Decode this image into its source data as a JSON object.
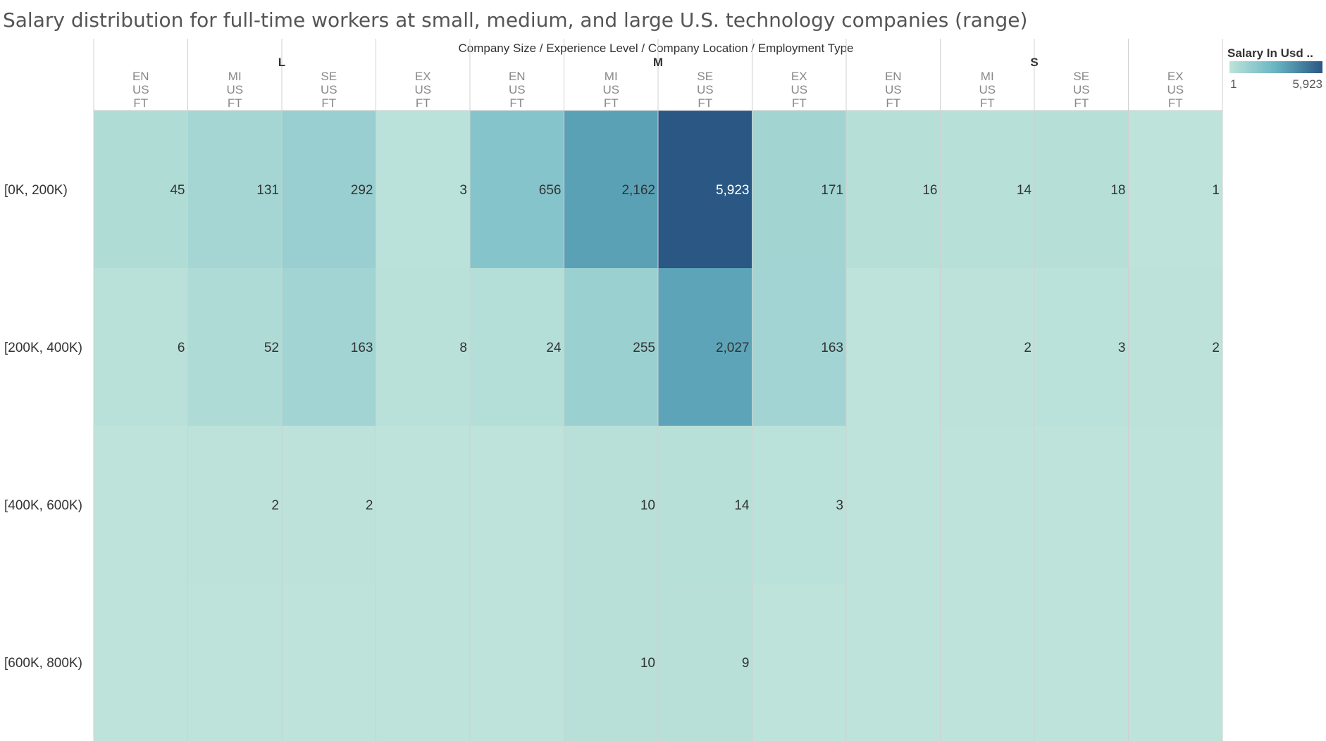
{
  "chart_data": {
    "type": "heatmap",
    "title": "Salary distribution for full-time workers at small, medium, and large U.S. technology companies (range)",
    "column_header": "Company Size  /  Experience Level  /  Company Location  /  Employment Type",
    "groups": [
      {
        "name": "L",
        "columns": [
          {
            "level": "EN",
            "location": "US",
            "type": "FT"
          },
          {
            "level": "MI",
            "location": "US",
            "type": "FT"
          },
          {
            "level": "SE",
            "location": "US",
            "type": "FT"
          },
          {
            "level": "EX",
            "location": "US",
            "type": "FT"
          }
        ]
      },
      {
        "name": "M",
        "columns": [
          {
            "level": "EN",
            "location": "US",
            "type": "FT"
          },
          {
            "level": "MI",
            "location": "US",
            "type": "FT"
          },
          {
            "level": "SE",
            "location": "US",
            "type": "FT"
          },
          {
            "level": "EX",
            "location": "US",
            "type": "FT"
          }
        ]
      },
      {
        "name": "S",
        "columns": [
          {
            "level": "EN",
            "location": "US",
            "type": "FT"
          },
          {
            "level": "MI",
            "location": "US",
            "type": "FT"
          },
          {
            "level": "SE",
            "location": "US",
            "type": "FT"
          },
          {
            "level": "EX",
            "location": "US",
            "type": "FT"
          }
        ]
      }
    ],
    "rows": [
      "[0K, 200K)",
      "[200K, 400K)",
      "[400K, 600K)",
      "[600K, 800K)"
    ],
    "values": [
      [
        45,
        131,
        292,
        3,
        656,
        2162,
        5923,
        171,
        16,
        14,
        18,
        1
      ],
      [
        6,
        52,
        163,
        8,
        24,
        255,
        2027,
        163,
        null,
        2,
        3,
        2
      ],
      [
        null,
        2,
        2,
        null,
        null,
        10,
        14,
        3,
        null,
        null,
        null,
        null
      ],
      [
        null,
        null,
        null,
        null,
        null,
        10,
        9,
        null,
        null,
        null,
        null,
        null
      ]
    ],
    "legend": {
      "title": "Salary In Usd ..",
      "min": 1,
      "max": 5923,
      "min_label": "1",
      "max_label": "5,923"
    },
    "colors": {
      "low": "#bde3da",
      "mid": "#67b3c2",
      "high": "#2a5783",
      "empty": "#bde3da",
      "separator": "#d0d0d0"
    }
  }
}
